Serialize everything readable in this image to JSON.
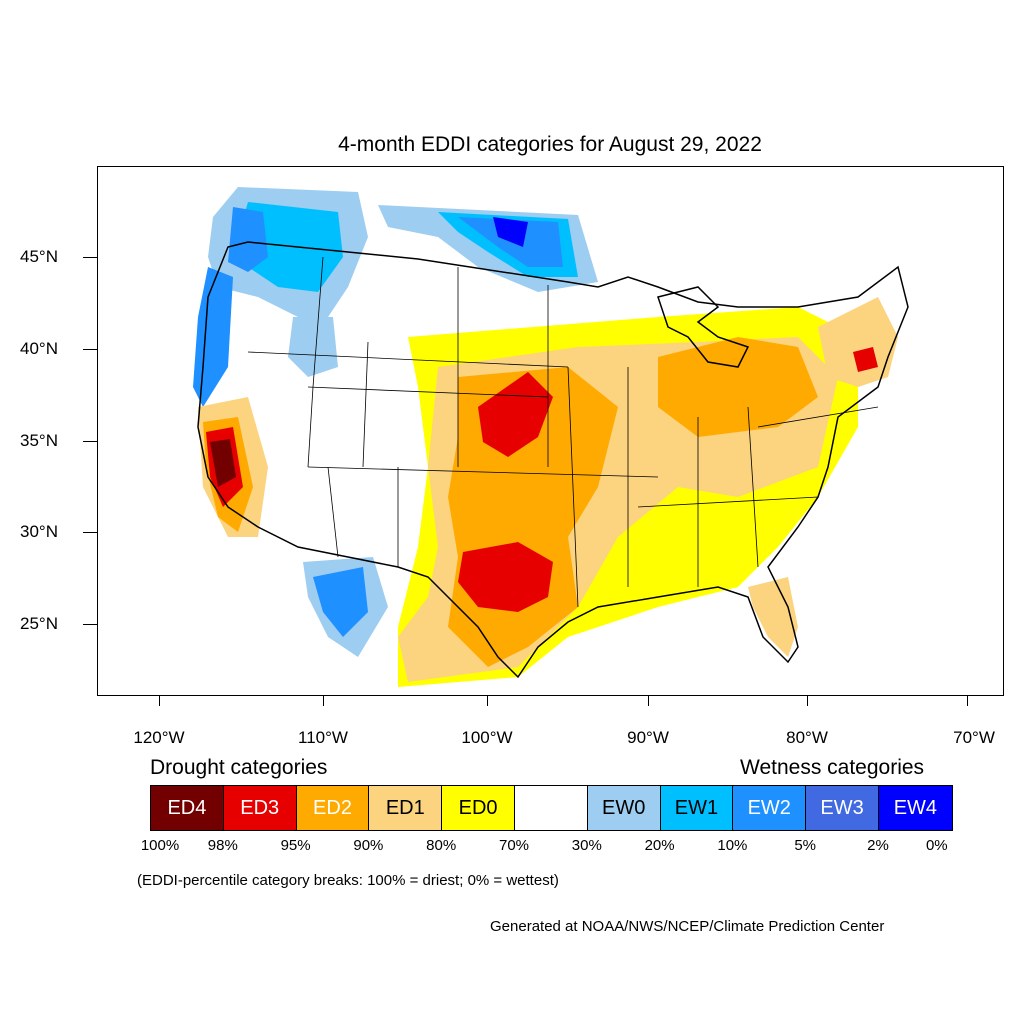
{
  "title": "4-month EDDI categories for August 29, 2022",
  "lat_ticks": [
    "45°N",
    "40°N",
    "35°N",
    "30°N",
    "25°N"
  ],
  "lon_ticks": [
    "120°W",
    "110°W",
    "100°W",
    "90°W",
    "80°W",
    "70°W"
  ],
  "legend": {
    "drought_heading": "Drought categories",
    "wetness_heading": "Wetness categories",
    "categories": [
      {
        "label": "ED4",
        "color": "#730000",
        "text_color": "#ffffff"
      },
      {
        "label": "ED3",
        "color": "#e60000",
        "text_color": "#ffffff"
      },
      {
        "label": "ED2",
        "color": "#ffaa00",
        "text_color": "#ffffff"
      },
      {
        "label": "ED1",
        "color": "#fcd37f",
        "text_color": "#000000"
      },
      {
        "label": "ED0",
        "color": "#ffff00",
        "text_color": "#000000"
      },
      {
        "label": "",
        "color": "#ffffff",
        "text_color": "#000000"
      },
      {
        "label": "EW0",
        "color": "#9dcdf0",
        "text_color": "#000000"
      },
      {
        "label": "EW1",
        "color": "#00bfff",
        "text_color": "#000000"
      },
      {
        "label": "EW2",
        "color": "#1e90ff",
        "text_color": "#ffffff"
      },
      {
        "label": "EW3",
        "color": "#4169e1",
        "text_color": "#ffffff"
      },
      {
        "label": "EW4",
        "color": "#0000ff",
        "text_color": "#ffffff"
      }
    ],
    "percentiles": [
      "100%",
      "98%",
      "95%",
      "90%",
      "80%",
      "70%",
      "30%",
      "20%",
      "10%",
      "5%",
      "2%",
      "0%"
    ]
  },
  "note": "(EDDI-percentile category breaks: 100% = driest; 0% = wettest)",
  "credit": "Generated at NOAA/NWS/NCEP/Climate Prediction Center"
}
